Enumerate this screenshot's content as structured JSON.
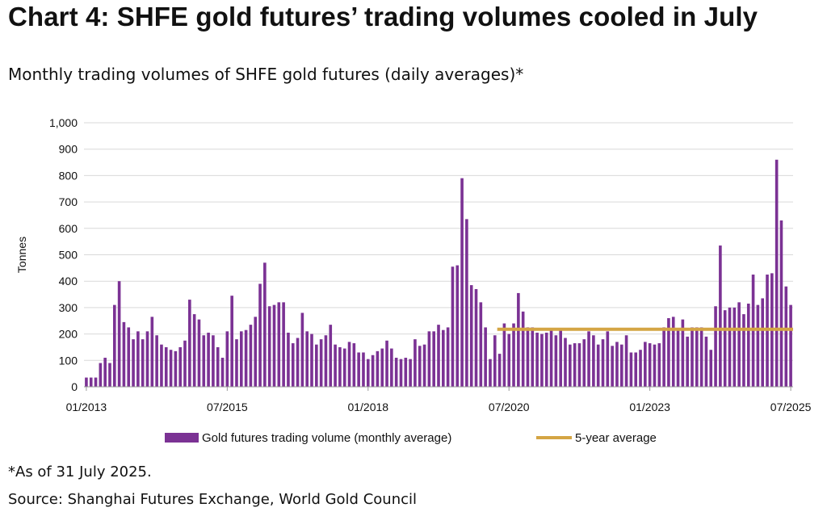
{
  "title": "Chart 4: SHFE gold futures’ trading volumes cooled in July",
  "subtitle": "Monthly trading volumes of SHFE gold futures (daily averages)*",
  "footnote": "*As of 31 July 2025.",
  "source": "Source: Shanghai Futures Exchange, World Gold Council",
  "colors": {
    "bars": "#7b3294",
    "average_line": "#d4a544",
    "gridline": "#d9d9d9",
    "axis": "#999999"
  },
  "chart_data": {
    "type": "bar",
    "ylabel": "Tonnes",
    "xlabel": "",
    "ylim": [
      0,
      1000
    ],
    "yticks": [
      0,
      100,
      200,
      300,
      400,
      500,
      600,
      700,
      800,
      900,
      1000
    ],
    "ytick_labels": [
      "0",
      "100",
      "200",
      "300",
      "400",
      "500",
      "600",
      "700",
      "800",
      "900",
      "1,000"
    ],
    "xticks": [
      {
        "label": "01/2013",
        "month_index": 0
      },
      {
        "label": "07/2015",
        "month_index": 30
      },
      {
        "label": "01/2018",
        "month_index": 60
      },
      {
        "label": "07/2020",
        "month_index": 90
      },
      {
        "label": "01/2023",
        "month_index": 120
      },
      {
        "label": "07/2025",
        "month_index": 150
      }
    ],
    "grid": true,
    "legend_position": "bottom",
    "series": [
      {
        "name": "Gold futures trading volume (monthly average)",
        "type": "bar",
        "values": [
          35,
          35,
          35,
          90,
          110,
          90,
          310,
          400,
          245,
          225,
          180,
          210,
          180,
          210,
          265,
          195,
          160,
          150,
          140,
          135,
          150,
          175,
          330,
          275,
          255,
          195,
          205,
          195,
          150,
          110,
          210,
          345,
          180,
          210,
          215,
          235,
          265,
          390,
          470,
          305,
          310,
          320,
          320,
          205,
          165,
          185,
          280,
          210,
          200,
          160,
          180,
          195,
          235,
          160,
          150,
          145,
          170,
          165,
          130,
          130,
          105,
          120,
          135,
          145,
          175,
          145,
          110,
          105,
          110,
          105,
          180,
          155,
          160,
          210,
          210,
          235,
          215,
          225,
          455,
          460,
          790,
          635,
          385,
          370,
          320,
          225,
          105,
          195,
          125,
          240,
          200,
          240,
          355,
          285,
          225,
          225,
          205,
          200,
          205,
          220,
          195,
          220,
          185,
          160,
          165,
          165,
          180,
          210,
          195,
          160,
          180,
          210,
          155,
          170,
          160,
          195,
          130,
          130,
          140,
          170,
          165,
          160,
          165,
          225,
          260,
          265,
          215,
          255,
          190,
          225,
          225,
          225,
          190,
          140,
          305,
          535,
          290,
          300,
          300,
          320,
          275,
          315,
          425,
          310,
          335,
          425,
          430,
          860,
          630,
          380,
          310
        ]
      },
      {
        "name": "5-year average",
        "type": "line",
        "value": 218,
        "from_month_index": 88,
        "to_month_index": 150
      }
    ]
  }
}
